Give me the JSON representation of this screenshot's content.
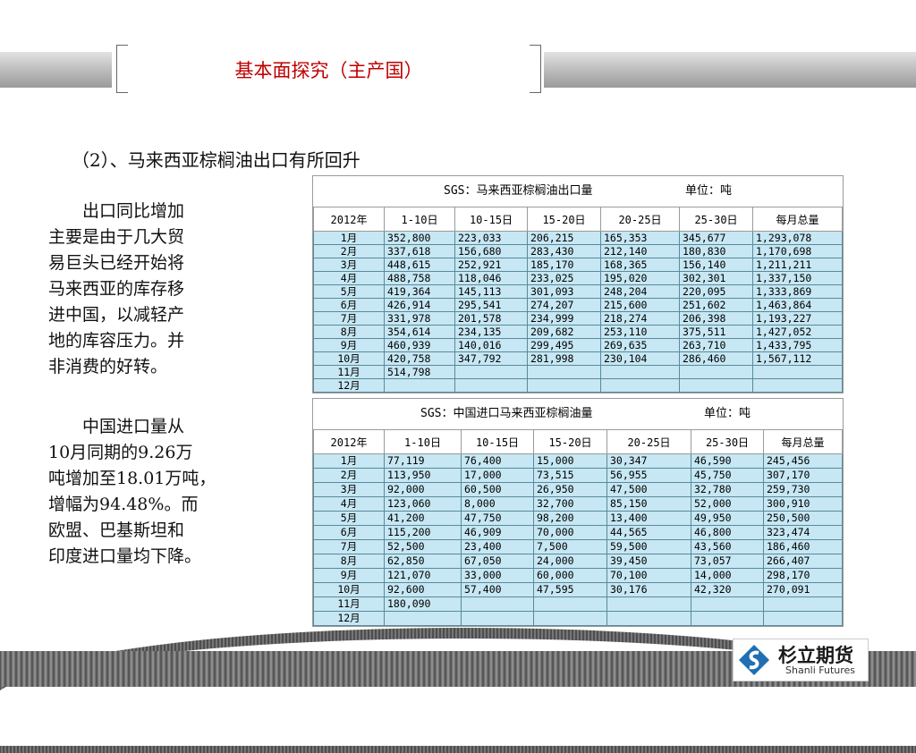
{
  "title": "基本面探究（主产国）",
  "subtitle": "（2）、马来西亚棕榈油出口有所回升",
  "para1": [
    "出口同比增加",
    "主要是由于几大贸",
    "易巨头已经开始将",
    "马来西亚的库存移",
    "进中国，以减轻产",
    "地的库容压力。并",
    "非消费的好转。"
  ],
  "para2": [
    "中国进口量从",
    "10月同期的9.26万",
    "吨增加至18.01万吨，",
    "增幅为94.48%。而",
    "欧盟、巴基斯坦和",
    "印度进口量均下降。"
  ],
  "table1": {
    "source": "SGS：马来西亚棕榈油出口量",
    "unit": "单位：吨",
    "headers": [
      "2012年",
      "1-10日",
      "10-15日",
      "15-20日",
      "20-25日",
      "25-30日",
      "每月总量"
    ],
    "rows": [
      [
        "1月",
        "352,800",
        "223,033",
        "206,215",
        "165,353",
        "345,677",
        "1,293,078"
      ],
      [
        "2月",
        "337,618",
        "156,680",
        "283,430",
        "212,140",
        "180,830",
        "1,170,698"
      ],
      [
        "3月",
        "448,615",
        "252,921",
        "185,170",
        "168,365",
        "156,140",
        "1,211,211"
      ],
      [
        "4月",
        "488,758",
        "118,046",
        "233,025",
        "195,020",
        "302,301",
        "1,337,150"
      ],
      [
        "5月",
        "419,364",
        "145,113",
        "301,093",
        "248,204",
        "220,095",
        "1,333,869"
      ],
      [
        "6月",
        "426,914",
        "295,541",
        "274,207",
        "215,600",
        "251,602",
        "1,463,864"
      ],
      [
        "7月",
        "331,978",
        "201,578",
        "234,999",
        "218,274",
        "206,398",
        "1,193,227"
      ],
      [
        "8月",
        "354,614",
        "234,135",
        "209,682",
        "253,110",
        "375,511",
        "1,427,052"
      ],
      [
        "9月",
        "460,939",
        "140,016",
        "299,495",
        "269,635",
        "263,710",
        "1,433,795"
      ],
      [
        "10月",
        "420,758",
        "347,792",
        "281,998",
        "230,104",
        "286,460",
        "1,567,112"
      ],
      [
        "11月",
        "514,798",
        "",
        "",
        "",
        "",
        ""
      ],
      [
        "12月",
        "",
        "",
        "",
        "",
        "",
        ""
      ]
    ]
  },
  "table2": {
    "source": "SGS：中国进口马来西亚棕榈油量",
    "unit": "单位：吨",
    "headers": [
      "2012年",
      "1-10日",
      "10-15日",
      "15-20日",
      "20-25日",
      "25-30日",
      "每月总量"
    ],
    "rows": [
      [
        "1月",
        "77,119",
        "76,400",
        "15,000",
        "30,347",
        "46,590",
        "245,456"
      ],
      [
        "2月",
        "113,950",
        "17,000",
        "73,515",
        "56,955",
        "45,750",
        "307,170"
      ],
      [
        "3月",
        "92,000",
        "60,500",
        "26,950",
        "47,500",
        "32,780",
        "259,730"
      ],
      [
        "4月",
        "123,060",
        "8,000",
        "32,700",
        "85,150",
        "52,000",
        "300,910"
      ],
      [
        "5月",
        "41,200",
        "47,750",
        "98,200",
        "13,400",
        "49,950",
        "250,500"
      ],
      [
        "6月",
        "115,200",
        "46,909",
        "70,000",
        "44,565",
        "46,800",
        "323,474"
      ],
      [
        "7月",
        "52,500",
        "23,400",
        "7,500",
        "59,500",
        "43,560",
        "186,460"
      ],
      [
        "8月",
        "62,850",
        "67,050",
        "24,000",
        "39,450",
        "73,057",
        "266,407"
      ],
      [
        "9月",
        "121,070",
        "33,000",
        "60,000",
        "70,100",
        "14,000",
        "298,170"
      ],
      [
        "10月",
        "92,600",
        "57,400",
        "47,595",
        "30,176",
        "42,320",
        "270,091"
      ],
      [
        "11月",
        "180,090",
        "",
        "",
        "",
        "",
        ""
      ],
      [
        "12月",
        "",
        "",
        "",
        "",
        "",
        ""
      ]
    ]
  },
  "logo": {
    "cn": "杉立期货",
    "en": "Shanli Futures",
    "icon": "shanli-s-logo-icon",
    "color": "#1f6fb2"
  }
}
